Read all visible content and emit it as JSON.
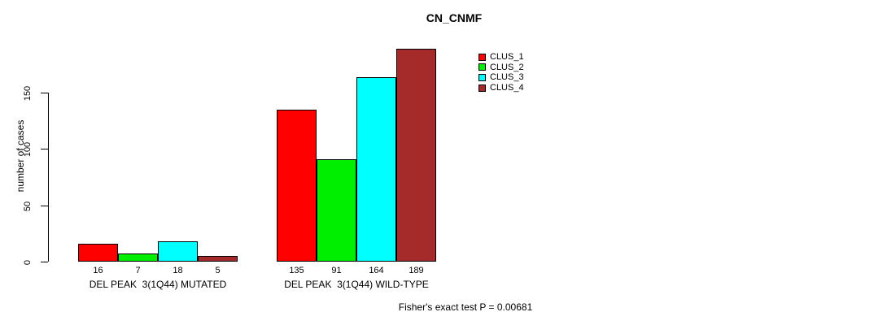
{
  "chart_data": {
    "type": "bar",
    "title": "CN_CNMF",
    "ylabel": "number of cases",
    "xlabel": "",
    "ylim": [
      0,
      150
    ],
    "yticks": [
      0,
      50,
      100,
      150
    ],
    "grid": false,
    "legend_position": "top-right",
    "categories": [
      "DEL PEAK  3(1Q44) MUTATED",
      "DEL PEAK  3(1Q44) WILD-TYPE"
    ],
    "series": [
      {
        "name": "CLUS_1",
        "color": "#FF0000",
        "values": [
          16,
          135
        ]
      },
      {
        "name": "CLUS_2",
        "color": "#00EE00",
        "values": [
          7,
          91
        ]
      },
      {
        "name": "CLUS_3",
        "color": "#00FFFF",
        "values": [
          18,
          164
        ]
      },
      {
        "name": "CLUS_4",
        "color": "#A52A2A",
        "values": [
          5,
          189
        ]
      }
    ],
    "annotation": "Fisher's exact test P = 0.00681"
  }
}
